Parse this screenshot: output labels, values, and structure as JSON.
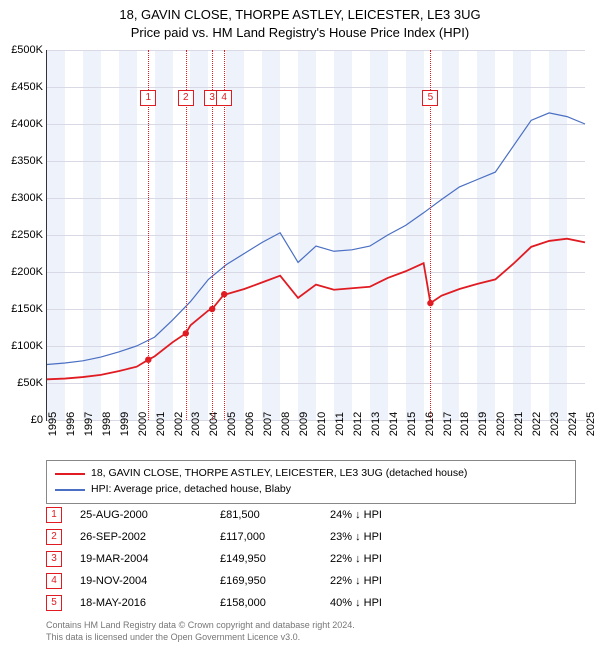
{
  "title": {
    "line1": "18, GAVIN CLOSE, THORPE ASTLEY, LEICESTER, LE3 3UG",
    "line2": "Price paid vs. HM Land Registry's House Price Index (HPI)"
  },
  "chart": {
    "type": "line",
    "background_color": "#ffffff",
    "band_color": "#eef2fa",
    "grid_color": "#d9d9e6",
    "axis_color": "#333333",
    "event_line_color": "#e01b22",
    "ylim": [
      0,
      500000
    ],
    "ytick_step": 50000,
    "y_format_prefix": "£",
    "y_format_suffix": "K",
    "x_years": [
      1995,
      1996,
      1997,
      1998,
      1999,
      2000,
      2001,
      2002,
      2003,
      2004,
      2005,
      2006,
      2007,
      2008,
      2009,
      2010,
      2011,
      2012,
      2013,
      2014,
      2015,
      2016,
      2017,
      2018,
      2019,
      2020,
      2021,
      2022,
      2023,
      2024,
      2025
    ],
    "series": [
      {
        "name": "HPI: Average price, detached house, Blaby",
        "color": "#4a6fc3",
        "width": 1.2,
        "data": [
          [
            1995,
            75000
          ],
          [
            1996,
            77000
          ],
          [
            1997,
            80000
          ],
          [
            1998,
            85000
          ],
          [
            1999,
            92000
          ],
          [
            2000,
            100000
          ],
          [
            2001,
            112000
          ],
          [
            2002,
            135000
          ],
          [
            2003,
            160000
          ],
          [
            2004,
            190000
          ],
          [
            2005,
            210000
          ],
          [
            2006,
            225000
          ],
          [
            2007,
            240000
          ],
          [
            2008,
            253000
          ],
          [
            2009,
            213000
          ],
          [
            2010,
            235000
          ],
          [
            2011,
            228000
          ],
          [
            2012,
            230000
          ],
          [
            2013,
            235000
          ],
          [
            2014,
            250000
          ],
          [
            2015,
            263000
          ],
          [
            2016,
            280000
          ],
          [
            2017,
            298000
          ],
          [
            2018,
            315000
          ],
          [
            2019,
            325000
          ],
          [
            2020,
            335000
          ],
          [
            2021,
            370000
          ],
          [
            2022,
            405000
          ],
          [
            2023,
            415000
          ],
          [
            2024,
            410000
          ],
          [
            2025,
            400000
          ]
        ]
      },
      {
        "name": "18, GAVIN CLOSE, THORPE ASTLEY, LEICESTER, LE3 3UG (detached house)",
        "color": "#e01b22",
        "width": 1.8,
        "data": [
          [
            1995,
            55000
          ],
          [
            1996,
            56000
          ],
          [
            1997,
            58000
          ],
          [
            1998,
            61000
          ],
          [
            1999,
            66000
          ],
          [
            2000,
            72000
          ],
          [
            2000.65,
            81500
          ],
          [
            2001,
            86000
          ],
          [
            2002,
            105000
          ],
          [
            2002.74,
            117000
          ],
          [
            2003,
            128000
          ],
          [
            2004,
            148000
          ],
          [
            2004.21,
            149950
          ],
          [
            2004.88,
            169950
          ],
          [
            2005,
            170000
          ],
          [
            2006,
            177000
          ],
          [
            2007,
            186000
          ],
          [
            2008,
            195000
          ],
          [
            2009,
            165000
          ],
          [
            2010,
            183000
          ],
          [
            2011,
            176000
          ],
          [
            2012,
            178000
          ],
          [
            2013,
            180000
          ],
          [
            2014,
            192000
          ],
          [
            2015,
            201000
          ],
          [
            2016,
            212000
          ],
          [
            2016.38,
            158000
          ],
          [
            2017,
            168000
          ],
          [
            2018,
            177000
          ],
          [
            2019,
            184000
          ],
          [
            2020,
            190000
          ],
          [
            2021,
            211000
          ],
          [
            2022,
            234000
          ],
          [
            2023,
            242000
          ],
          [
            2024,
            245000
          ],
          [
            2025,
            240000
          ]
        ]
      }
    ],
    "sale_points": [
      {
        "x": 2000.65,
        "y": 81500
      },
      {
        "x": 2002.74,
        "y": 117000
      },
      {
        "x": 2004.21,
        "y": 149950
      },
      {
        "x": 2004.88,
        "y": 169950
      },
      {
        "x": 2016.38,
        "y": 158000
      }
    ],
    "event_markers": [
      {
        "num": "1",
        "x": 2000.65,
        "top_y": 40
      },
      {
        "num": "2",
        "x": 2002.74,
        "top_y": 40
      },
      {
        "num": "3",
        "x": 2004.21,
        "top_y": 40
      },
      {
        "num": "4",
        "x": 2004.88,
        "top_y": 40
      },
      {
        "num": "5",
        "x": 2016.38,
        "top_y": 40
      }
    ]
  },
  "legend": [
    {
      "color": "#e01b22",
      "label": "18, GAVIN CLOSE, THORPE ASTLEY, LEICESTER, LE3 3UG (detached house)"
    },
    {
      "color": "#4a6fc3",
      "label": "HPI: Average price, detached house, Blaby"
    }
  ],
  "events_table": [
    {
      "num": "1",
      "date": "25-AUG-2000",
      "price": "£81,500",
      "hpi": "24% ↓ HPI"
    },
    {
      "num": "2",
      "date": "26-SEP-2002",
      "price": "£117,000",
      "hpi": "23% ↓ HPI"
    },
    {
      "num": "3",
      "date": "19-MAR-2004",
      "price": "£149,950",
      "hpi": "22% ↓ HPI"
    },
    {
      "num": "4",
      "date": "19-NOV-2004",
      "price": "£169,950",
      "hpi": "22% ↓ HPI"
    },
    {
      "num": "5",
      "date": "18-MAY-2016",
      "price": "£158,000",
      "hpi": "40% ↓ HPI"
    }
  ],
  "attribution": {
    "line1": "Contains HM Land Registry data © Crown copyright and database right 2024.",
    "line2": "This data is licensed under the Open Government Licence v3.0."
  }
}
